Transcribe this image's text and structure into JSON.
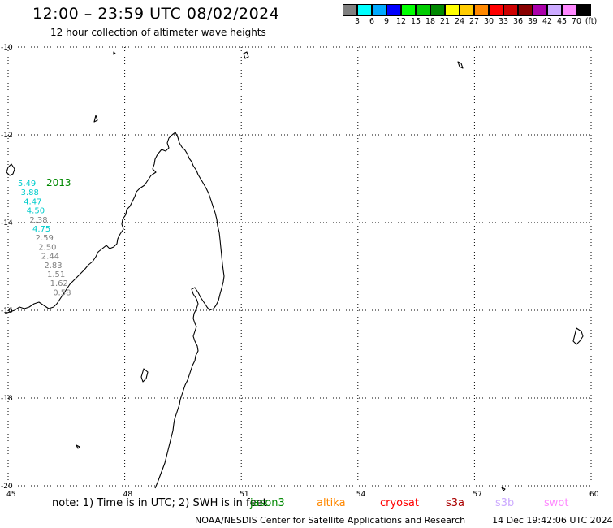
{
  "header": {
    "title": "12:00 – 23:59 UTC 08/02/2024",
    "subtitle": "12 hour collection of altimeter wave heights"
  },
  "color_scale": {
    "colors": [
      "#808080",
      "#00ffff",
      "#00aaff",
      "#0000ff",
      "#00ff00",
      "#00cc00",
      "#008800",
      "#ffff00",
      "#ffcc00",
      "#ff8800",
      "#ff0000",
      "#cc0000",
      "#880000",
      "#aa00aa",
      "#ccaaff",
      "#ff88ff",
      "#000000"
    ],
    "labels": [
      "3",
      "6",
      "9",
      "12",
      "15",
      "18",
      "21",
      "24",
      "27",
      "30",
      "33",
      "36",
      "39",
      "42",
      "45",
      "70",
      "(ft)"
    ]
  },
  "axes": {
    "lon_labels": [
      "45",
      "48",
      "51",
      "54",
      "57",
      "60"
    ],
    "lat_labels": [
      "-10",
      "-12",
      "-14",
      "-16",
      "-18",
      "-20"
    ],
    "lon_range": [
      45,
      60
    ],
    "lat_range": [
      -20,
      -10
    ],
    "grid": "dotted"
  },
  "track": {
    "time_label": "2013",
    "time_label_color": "#008800",
    "points": [
      {
        "value": "5.49",
        "color": "#00cccc"
      },
      {
        "value": "3.88",
        "color": "#00cccc"
      },
      {
        "value": "4.47",
        "color": "#00cccc"
      },
      {
        "value": "4.50",
        "color": "#00cccc"
      },
      {
        "value": "2.38",
        "color": "#808080"
      },
      {
        "value": "4.75",
        "color": "#00cccc"
      },
      {
        "value": "2.59",
        "color": "#808080"
      },
      {
        "value": "2.50",
        "color": "#808080"
      },
      {
        "value": "2.44",
        "color": "#808080"
      },
      {
        "value": "2.83",
        "color": "#808080"
      },
      {
        "value": "1.51",
        "color": "#808080"
      },
      {
        "value": "1.62",
        "color": "#808080"
      },
      {
        "value": "0.58",
        "color": "#808080"
      }
    ]
  },
  "footer": {
    "note": "note: 1) Time is in UTC; 2) SWH is in feet",
    "satellites": [
      {
        "name": "jason3",
        "color": "#008800"
      },
      {
        "name": "altika",
        "color": "#ff8800"
      },
      {
        "name": "cryosat",
        "color": "#ff0000"
      },
      {
        "name": "s3a",
        "color": "#aa0000"
      },
      {
        "name": "s3b",
        "color": "#ccaaff"
      },
      {
        "name": "swot",
        "color": "#ff88ff"
      }
    ],
    "credit": "NOAA/NESDIS Center for Satellite Applications and Research",
    "generated": "14 Dec 19:42:06 UTC 2024"
  }
}
